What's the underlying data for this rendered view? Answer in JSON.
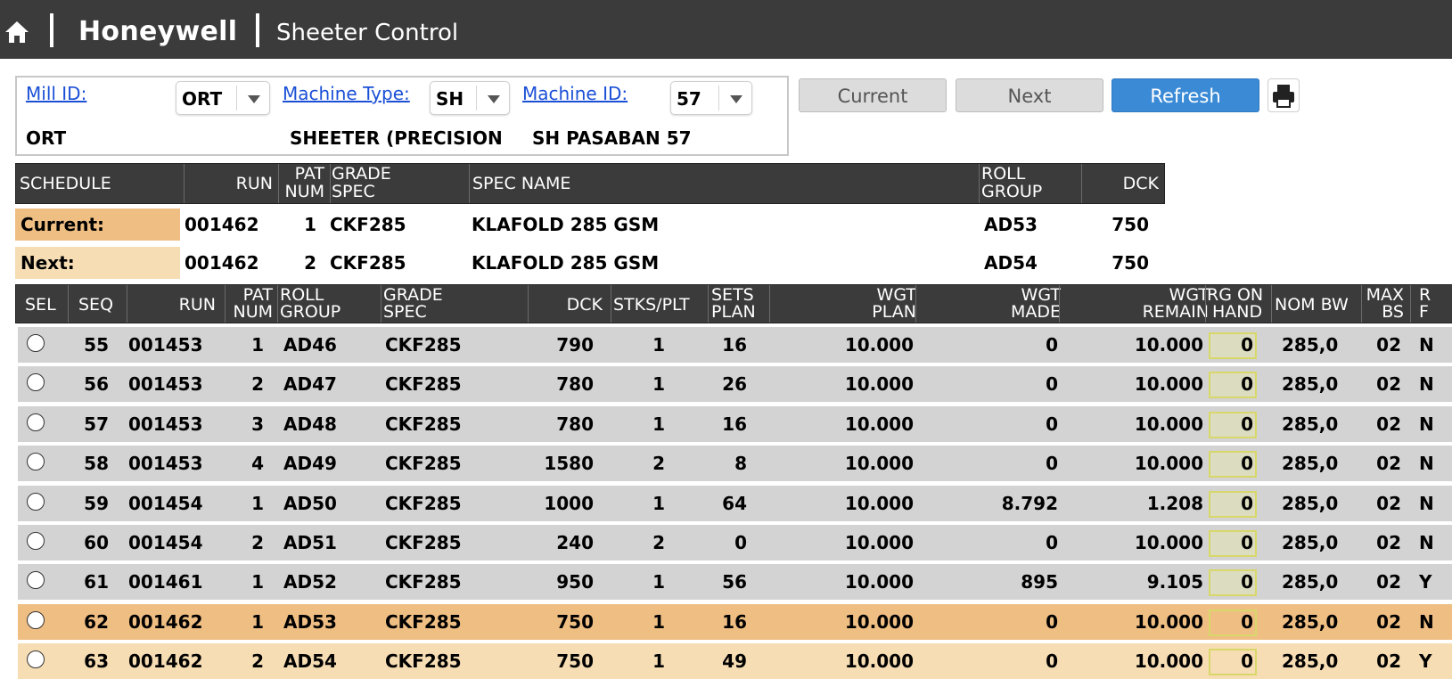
{
  "header": {
    "brand": "Honeywell",
    "app_title": "Sheeter Control"
  },
  "filters": {
    "mill_id_label": "Mill ID:",
    "mill_id_value": "ORT",
    "mill_name": "ORT",
    "machine_type_label": "Machine Type:",
    "machine_type_value": "SH",
    "machine_type_name": "SHEETER (PRECISION",
    "machine_id_label": "Machine ID:",
    "machine_id_value": "57",
    "machine_name": "SH PASABAN 57"
  },
  "buttons": {
    "current": "Current",
    "next": "Next",
    "refresh": "Refresh",
    "print_icon": "printer-icon"
  },
  "schedule_header": {
    "schedule": "SCHEDULE",
    "run": "RUN",
    "pat_num_1": "PAT",
    "pat_num_2": "NUM",
    "grade_spec_1": "GRADE",
    "grade_spec_2": "SPEC",
    "spec_name": "SPEC NAME",
    "roll_group_1": "ROLL",
    "roll_group_2": "GROUP",
    "dck": "DCK"
  },
  "schedule_rows": [
    {
      "label": "Current:",
      "run": "001462",
      "pat": "1",
      "grade": "CKF285",
      "spec_name": "KLAFOLD 285 GSM",
      "roll_group": "AD53",
      "dck": "750",
      "color": "#efbe83"
    },
    {
      "label": "Next:",
      "run": "001462",
      "pat": "2",
      "grade": "CKF285",
      "spec_name": "KLAFOLD 285 GSM",
      "roll_group": "AD54",
      "dck": "750",
      "color": "#f6ddb4"
    }
  ],
  "table_header": {
    "sel": "SEL",
    "seq": "SEQ",
    "run": "RUN",
    "pat_num_1": "PAT",
    "pat_num_2": "NUM",
    "roll_group_1": "ROLL",
    "roll_group_2": "GROUP",
    "grade_spec_1": "GRADE",
    "grade_spec_2": "SPEC",
    "dck": "DCK",
    "stks_plt": "STKS/PLT",
    "sets_plan_1": "SETS",
    "sets_plan_2": "PLAN",
    "wgt_plan_1": "WGT",
    "wgt_plan_2": "PLAN",
    "wgt_made_1": "WGT",
    "wgt_made_2": "MADE",
    "wgt_remain_1": "WGT",
    "wgt_remain_2": "REMAIN",
    "rg_on_hand_1": "RG ON",
    "rg_on_hand_2": "HAND",
    "nom_bw": "NOM BW",
    "max_bs_1": "MAX",
    "max_bs_2": "BS",
    "rf_1": "R",
    "rf_2": "F"
  },
  "rows": [
    {
      "seq": "55",
      "run": "001453",
      "pat": "1",
      "roll_group": "AD46",
      "grade": "CKF285",
      "dck": "790",
      "stks": "1",
      "sets": "16",
      "wgt_plan": "10.000",
      "wgt_made": "0",
      "wgt_remain": "10.000",
      "rg": "0",
      "nom_bw": "285,0",
      "max_bs": "02",
      "rf": "N",
      "color": "#d3d3d3"
    },
    {
      "seq": "56",
      "run": "001453",
      "pat": "2",
      "roll_group": "AD47",
      "grade": "CKF285",
      "dck": "780",
      "stks": "1",
      "sets": "26",
      "wgt_plan": "10.000",
      "wgt_made": "0",
      "wgt_remain": "10.000",
      "rg": "0",
      "nom_bw": "285,0",
      "max_bs": "02",
      "rf": "N",
      "color": "#d3d3d3"
    },
    {
      "seq": "57",
      "run": "001453",
      "pat": "3",
      "roll_group": "AD48",
      "grade": "CKF285",
      "dck": "780",
      "stks": "1",
      "sets": "16",
      "wgt_plan": "10.000",
      "wgt_made": "0",
      "wgt_remain": "10.000",
      "rg": "0",
      "nom_bw": "285,0",
      "max_bs": "02",
      "rf": "N",
      "color": "#d3d3d3"
    },
    {
      "seq": "58",
      "run": "001453",
      "pat": "4",
      "roll_group": "AD49",
      "grade": "CKF285",
      "dck": "1580",
      "stks": "2",
      "sets": "8",
      "wgt_plan": "10.000",
      "wgt_made": "0",
      "wgt_remain": "10.000",
      "rg": "0",
      "nom_bw": "285,0",
      "max_bs": "02",
      "rf": "N",
      "color": "#d3d3d3"
    },
    {
      "seq": "59",
      "run": "001454",
      "pat": "1",
      "roll_group": "AD50",
      "grade": "CKF285",
      "dck": "1000",
      "stks": "1",
      "sets": "64",
      "wgt_plan": "10.000",
      "wgt_made": "8.792",
      "wgt_remain": "1.208",
      "rg": "0",
      "nom_bw": "285,0",
      "max_bs": "02",
      "rf": "N",
      "color": "#d3d3d3"
    },
    {
      "seq": "60",
      "run": "001454",
      "pat": "2",
      "roll_group": "AD51",
      "grade": "CKF285",
      "dck": "240",
      "stks": "2",
      "sets": "0",
      "wgt_plan": "10.000",
      "wgt_made": "0",
      "wgt_remain": "10.000",
      "rg": "0",
      "nom_bw": "285,0",
      "max_bs": "02",
      "rf": "N",
      "color": "#d3d3d3"
    },
    {
      "seq": "61",
      "run": "001461",
      "pat": "1",
      "roll_group": "AD52",
      "grade": "CKF285",
      "dck": "950",
      "stks": "1",
      "sets": "56",
      "wgt_plan": "10.000",
      "wgt_made": "895",
      "wgt_remain": "9.105",
      "rg": "0",
      "nom_bw": "285,0",
      "max_bs": "02",
      "rf": "Y",
      "color": "#d3d3d3"
    },
    {
      "seq": "62",
      "run": "001462",
      "pat": "1",
      "roll_group": "AD53",
      "grade": "CKF285",
      "dck": "750",
      "stks": "1",
      "sets": "16",
      "wgt_plan": "10.000",
      "wgt_made": "0",
      "wgt_remain": "10.000",
      "rg": "0",
      "nom_bw": "285,0",
      "max_bs": "02",
      "rf": "N",
      "color": "#efbe83"
    },
    {
      "seq": "63",
      "run": "001462",
      "pat": "2",
      "roll_group": "AD54",
      "grade": "CKF285",
      "dck": "750",
      "stks": "1",
      "sets": "49",
      "wgt_plan": "10.000",
      "wgt_made": "0",
      "wgt_remain": "10.000",
      "rg": "0",
      "nom_bw": "285,0",
      "max_bs": "02",
      "rf": "Y",
      "color": "#f6ddb4"
    }
  ]
}
